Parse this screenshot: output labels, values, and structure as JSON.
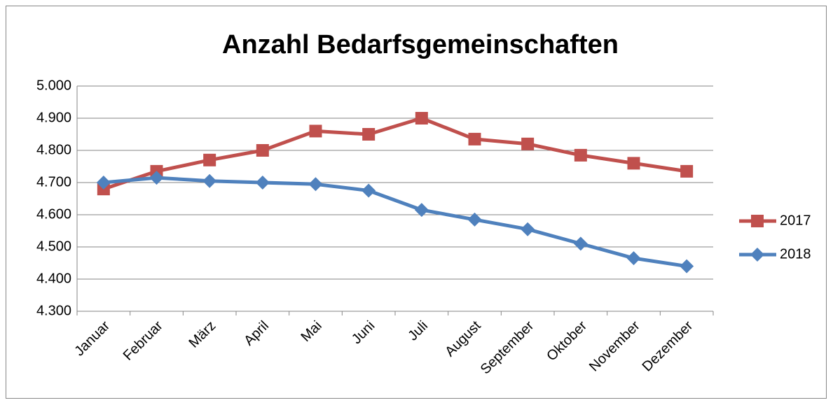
{
  "chart_data": {
    "type": "line",
    "title": "Anzahl Bedarfsgemeinschaften",
    "categories": [
      "Januar",
      "Februar",
      "März",
      "April",
      "Mai",
      "Juni",
      "Juli",
      "August",
      "September",
      "Oktober",
      "November",
      "Dezember"
    ],
    "series": [
      {
        "name": "2017",
        "color": "#c0504d",
        "marker": "square",
        "values": [
          4680,
          4735,
          4770,
          4800,
          4860,
          4850,
          4900,
          4835,
          4820,
          4785,
          4760,
          4735
        ]
      },
      {
        "name": "2018",
        "color": "#4f81bd",
        "marker": "diamond",
        "values": [
          4700,
          4715,
          4705,
          4700,
          4695,
          4675,
          4615,
          4585,
          4555,
          4510,
          4465,
          4440
        ]
      }
    ],
    "ylim": [
      4300,
      5000
    ],
    "yticks": [
      {
        "value": 4300,
        "label": "4.300"
      },
      {
        "value": 4400,
        "label": "4.400"
      },
      {
        "value": 4500,
        "label": "4.500"
      },
      {
        "value": 4600,
        "label": "4.600"
      },
      {
        "value": 4700,
        "label": "4.700"
      },
      {
        "value": 4800,
        "label": "4.800"
      },
      {
        "value": 4900,
        "label": "4.900"
      },
      {
        "value": 5000,
        "label": "5.000"
      }
    ],
    "grid": true,
    "legend": "right"
  }
}
